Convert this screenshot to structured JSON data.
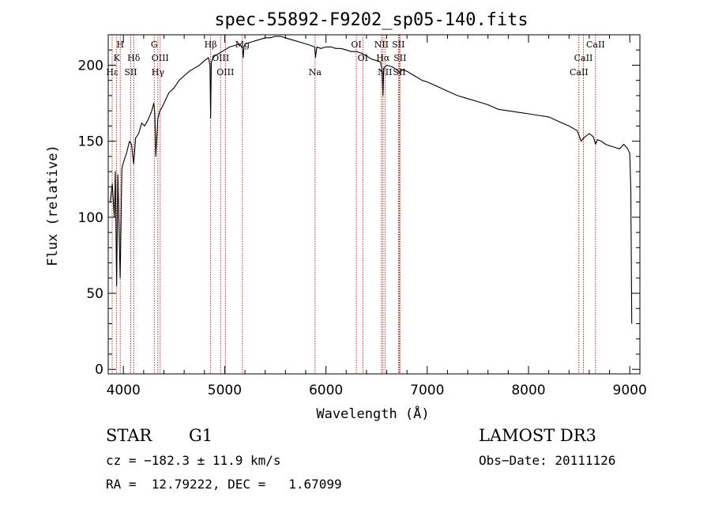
{
  "chart_data": {
    "type": "line",
    "title": "spec-55892-F9202_sp05-140.fits",
    "xlabel": "Wavelength (Å)",
    "ylabel": "Flux (relative)",
    "xlim": [
      3850,
      9100
    ],
    "ylim": [
      -3,
      220
    ],
    "xticks": [
      4000,
      5000,
      6000,
      7000,
      8000,
      9000
    ],
    "yticks": [
      0,
      50,
      100,
      150,
      200
    ],
    "series": [
      {
        "name": "flux",
        "x": [
          3870,
          3890,
          3910,
          3920,
          3933,
          3945,
          3968,
          3985,
          4000,
          4030,
          4060,
          4080,
          4101,
          4120,
          4150,
          4180,
          4210,
          4250,
          4280,
          4300,
          4310,
          4320,
          4340,
          4360,
          4380,
          4400,
          4450,
          4500,
          4550,
          4600,
          4650,
          4700,
          4750,
          4800,
          4840,
          4855,
          4861,
          4868,
          4880,
          4900,
          4950,
          5000,
          5050,
          5100,
          5150,
          5175,
          5183,
          5190,
          5200,
          5250,
          5300,
          5350,
          5400,
          5450,
          5500,
          5550,
          5600,
          5650,
          5700,
          5750,
          5800,
          5850,
          5889,
          5896,
          5910,
          5950,
          6000,
          6050,
          6100,
          6150,
          6200,
          6250,
          6300,
          6350,
          6400,
          6450,
          6500,
          6540,
          6556,
          6563,
          6570,
          6600,
          6650,
          6700,
          6730,
          6750,
          6800,
          6850,
          6900,
          6950,
          7000,
          7100,
          7200,
          7300,
          7400,
          7500,
          7600,
          7700,
          7800,
          7900,
          8000,
          8100,
          8200,
          8300,
          8400,
          8480,
          8498,
          8520,
          8542,
          8560,
          8600,
          8640,
          8662,
          8680,
          8720,
          8760,
          8800,
          8850,
          8900,
          8940,
          8980,
          9000,
          9010,
          9020
        ],
        "values": [
          110,
          122,
          100,
          130,
          55,
          128,
          60,
          132,
          136,
          142,
          150,
          148,
          135,
          152,
          155,
          162,
          160,
          165,
          170,
          175,
          168,
          140,
          165,
          170,
          172,
          175,
          182,
          185,
          190,
          193,
          196,
          198,
          200,
          203,
          205,
          200,
          165,
          202,
          204,
          206,
          208,
          210,
          212,
          213,
          214,
          211,
          205,
          212,
          214,
          215,
          216,
          217,
          218,
          218,
          219,
          219,
          218,
          217,
          216,
          215,
          214,
          213,
          212,
          205,
          212,
          211,
          212,
          212,
          211,
          211,
          210,
          209,
          209,
          208,
          206,
          204,
          203,
          202,
          195,
          180,
          198,
          200,
          199,
          197,
          195,
          197,
          196,
          194,
          192,
          190,
          189,
          186,
          183,
          180,
          178,
          176,
          174,
          171,
          170,
          169,
          168,
          167,
          166,
          163,
          160,
          157,
          154,
          150,
          152,
          153,
          155,
          153,
          148,
          151,
          150,
          148,
          147,
          146,
          145,
          148,
          145,
          142,
          118,
          30
        ]
      }
    ],
    "spectral_lines": [
      {
        "label": "H",
        "wavelength": 3968.5,
        "row": 0
      },
      {
        "label": "K",
        "wavelength": 3933.7,
        "row": 1
      },
      {
        "label": "Hε",
        "wavelength": 3889.0,
        "row": 2
      },
      {
        "label": "SII",
        "wavelength": 4072.0,
        "row": 2
      },
      {
        "label": "Hδ",
        "wavelength": 4101.7,
        "row": 1
      },
      {
        "label": "G",
        "wavelength": 4304.4,
        "row": 0
      },
      {
        "label": "OIII",
        "wavelength": 4363.0,
        "row": 1
      },
      {
        "label": "Hγ",
        "wavelength": 4340.5,
        "row": 2
      },
      {
        "label": "Hβ",
        "wavelength": 4861.3,
        "row": 0
      },
      {
        "label": "OIII",
        "wavelength": 4959.0,
        "row": 1
      },
      {
        "label": "OIII",
        "wavelength": 5007.0,
        "row": 2
      },
      {
        "label": "Mg",
        "wavelength": 5175.0,
        "row": 0
      },
      {
        "label": "Na",
        "wavelength": 5893.0,
        "row": 2
      },
      {
        "label": "OI",
        "wavelength": 6300.0,
        "row": 0
      },
      {
        "label": "OI",
        "wavelength": 6364.0,
        "row": 1
      },
      {
        "label": "NII",
        "wavelength": 6548.0,
        "row": 0
      },
      {
        "label": "Hα",
        "wavelength": 6563.0,
        "row": 1
      },
      {
        "label": "NII",
        "wavelength": 6583.0,
        "row": 2
      },
      {
        "label": "SII",
        "wavelength": 6716.0,
        "row": 0
      },
      {
        "label": "SII",
        "wavelength": 6731.0,
        "row": 1
      },
      {
        "label": "SII",
        "wavelength": 6725.0,
        "row": 2
      },
      {
        "label": "CaII",
        "wavelength": 8662.0,
        "row": 0
      },
      {
        "label": "CaII",
        "wavelength": 8542.0,
        "row": 1
      },
      {
        "label": "CaII",
        "wavelength": 8498.0,
        "row": 2
      }
    ]
  },
  "info": {
    "class": "STAR",
    "subclass": "G1",
    "survey": "LAMOST DR3",
    "cz": "cz = −182.3 ± 11.9 km/s",
    "obs_date": "Obs−Date: 20111126",
    "coords": "RA =  12.79222, DEC =   1.67099"
  },
  "colors": {
    "line_marker": "#b00000",
    "spectrum": "#000000"
  }
}
